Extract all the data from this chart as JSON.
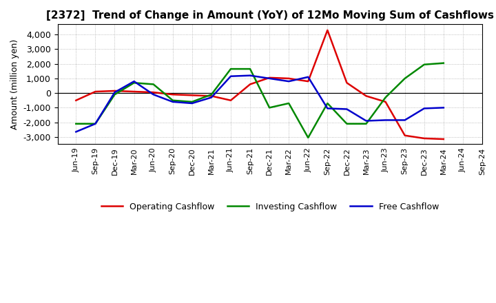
{
  "title": "[2372]  Trend of Change in Amount (YoY) of 12Mo Moving Sum of Cashflows",
  "ylabel": "Amount (million yen)",
  "xlabels": [
    "Jun-19",
    "Sep-19",
    "Dec-19",
    "Mar-20",
    "Jun-20",
    "Sep-20",
    "Dec-20",
    "Mar-21",
    "Jun-21",
    "Sep-21",
    "Dec-21",
    "Mar-22",
    "Jun-22",
    "Sep-22",
    "Dec-22",
    "Mar-23",
    "Jun-23",
    "Sep-23",
    "Dec-23",
    "Mar-24",
    "Jun-24",
    "Sep-24"
  ],
  "operating": [
    -500,
    100,
    150,
    100,
    50,
    -100,
    -150,
    -200,
    -500,
    600,
    1050,
    1000,
    800,
    4300,
    700,
    -200,
    -600,
    -2900,
    -3100,
    -3150,
    null,
    null
  ],
  "investing": [
    -2100,
    -2100,
    -100,
    700,
    600,
    -500,
    -600,
    -100,
    1650,
    1650,
    -1000,
    -700,
    -3050,
    -700,
    -2100,
    -2100,
    -300,
    1000,
    1950,
    2050,
    null,
    null
  ],
  "free": [
    -2650,
    -2100,
    50,
    800,
    -100,
    -600,
    -700,
    -300,
    1150,
    1200,
    1000,
    800,
    1100,
    -1050,
    -1100,
    -1900,
    -1850,
    -1850,
    -1050,
    -1000,
    null,
    null
  ],
  "operating_color": "#dd0000",
  "investing_color": "#008800",
  "free_color": "#0000cc",
  "ylim": [
    -3500,
    4700
  ],
  "yticks": [
    -3000,
    -2000,
    -1000,
    0,
    1000,
    2000,
    3000,
    4000
  ],
  "legend_labels": [
    "Operating Cashflow",
    "Investing Cashflow",
    "Free Cashflow"
  ],
  "bg_color": "#ffffff",
  "grid_color": "#aaaaaa",
  "title_fontsize": 11,
  "axis_fontsize": 9,
  "tick_fontsize": 8
}
